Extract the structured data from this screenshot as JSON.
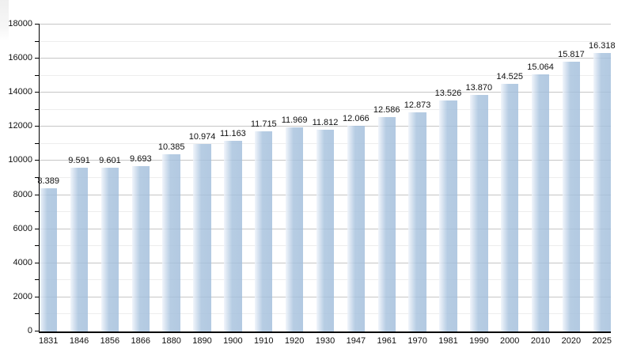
{
  "chart_data": {
    "type": "bar",
    "title": "",
    "xlabel": "",
    "ylabel": "",
    "categories": [
      "1831",
      "1846",
      "1856",
      "1866",
      "1880",
      "1890",
      "1900",
      "1910",
      "1920",
      "1930",
      "1947",
      "1961",
      "1970",
      "1981",
      "1990",
      "2000",
      "2010",
      "2020",
      "2025"
    ],
    "values": [
      8389,
      9591,
      9601,
      9693,
      10385,
      10974,
      11163,
      11715,
      11969,
      11812,
      12066,
      12586,
      12873,
      13526,
      13870,
      14525,
      15064,
      15817,
      16318
    ],
    "value_labels": [
      "8.389",
      "9.591",
      "9.601",
      "9.693",
      "10.385",
      "10.974",
      "11.163",
      "11.715",
      "11.969",
      "11.812",
      "12.066",
      "12.586",
      "12.873",
      "13.526",
      "13.870",
      "14.525",
      "15.064",
      "15.817",
      "16.318"
    ],
    "ylim": [
      0,
      18000
    ],
    "y_major_step": 2000,
    "y_minor_step": 1000,
    "y_tick_labels": [
      "0",
      "2000",
      "4000",
      "6000",
      "8000",
      "10000",
      "12000",
      "14000",
      "16000",
      "18000"
    ],
    "grid": "horizontal, major and minor lines, behind bars",
    "legend": "none",
    "colors": {
      "bar_body": "#b4cbe2",
      "bar_highlight_left": "#eef3fa",
      "major_grid": "#c6c6c6",
      "minor_grid": "#ededed",
      "axis": "#000000",
      "text": "#111111",
      "background": "#ffffff"
    }
  }
}
